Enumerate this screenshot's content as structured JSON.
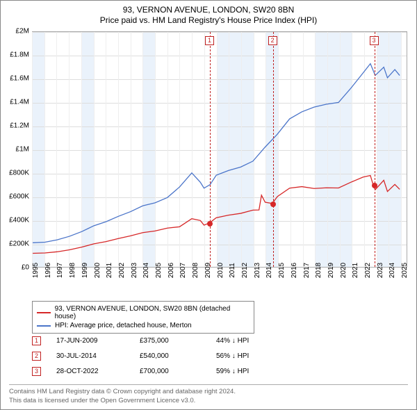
{
  "title": {
    "line1": "93, VERNON AVENUE, LONDON, SW20 8BN",
    "line2": "Price paid vs. HM Land Registry's House Price Index (HPI)"
  },
  "chart": {
    "type": "line",
    "background_color": "#ffffff",
    "grid_color": "#dddddd",
    "minor_grid_color": "#eeeeee",
    "shade_color": "#eaf2fb",
    "xlim": [
      1995,
      2025.5
    ],
    "ylim": [
      0,
      2000000
    ],
    "ytick_step": 200000,
    "ytick_labels": [
      "£0",
      "£200K",
      "£400K",
      "£600K",
      "£800K",
      "£1M",
      "£1.2M",
      "£1.4M",
      "£1.6M",
      "£1.8M",
      "£2M"
    ],
    "xticks": [
      1995,
      1996,
      1997,
      1998,
      1999,
      2000,
      2001,
      2002,
      2003,
      2004,
      2005,
      2006,
      2007,
      2008,
      2009,
      2010,
      2011,
      2012,
      2013,
      2014,
      2015,
      2016,
      2017,
      2018,
      2019,
      2020,
      2021,
      2022,
      2023,
      2024,
      2025
    ],
    "shaded_years": [
      1995,
      1999,
      2004,
      2010,
      2011,
      2012,
      2014,
      2018,
      2019,
      2020,
      2023,
      2024
    ],
    "label_fontsize": 10,
    "title_fontsize": 12,
    "line_width": 1.3,
    "series": [
      {
        "name": "hpi",
        "color": "#4a74c9",
        "label": "HPI: Average price, detached house, Merton",
        "points": [
          [
            1995,
            205000
          ],
          [
            1996,
            210000
          ],
          [
            1997,
            230000
          ],
          [
            1998,
            260000
          ],
          [
            1999,
            300000
          ],
          [
            2000,
            350000
          ],
          [
            2001,
            385000
          ],
          [
            2002,
            430000
          ],
          [
            2003,
            470000
          ],
          [
            2004,
            520000
          ],
          [
            2005,
            545000
          ],
          [
            2006,
            590000
          ],
          [
            2007,
            680000
          ],
          [
            2008,
            800000
          ],
          [
            2008.7,
            720000
          ],
          [
            2009,
            670000
          ],
          [
            2009.5,
            700000
          ],
          [
            2010,
            780000
          ],
          [
            2011,
            820000
          ],
          [
            2012,
            850000
          ],
          [
            2013,
            900000
          ],
          [
            2014,
            1020000
          ],
          [
            2015,
            1130000
          ],
          [
            2016,
            1260000
          ],
          [
            2017,
            1320000
          ],
          [
            2018,
            1360000
          ],
          [
            2019,
            1385000
          ],
          [
            2020,
            1400000
          ],
          [
            2021,
            1520000
          ],
          [
            2022,
            1650000
          ],
          [
            2022.6,
            1730000
          ],
          [
            2023,
            1630000
          ],
          [
            2023.7,
            1700000
          ],
          [
            2024,
            1610000
          ],
          [
            2024.6,
            1680000
          ],
          [
            2025,
            1630000
          ]
        ]
      },
      {
        "name": "property",
        "color": "#d62728",
        "label": "93, VERNON AVENUE, LONDON, SW20 8BN (detached house)",
        "points": [
          [
            1995,
            115000
          ],
          [
            1996,
            118000
          ],
          [
            1997,
            128000
          ],
          [
            1998,
            145000
          ],
          [
            1999,
            168000
          ],
          [
            2000,
            196000
          ],
          [
            2001,
            215000
          ],
          [
            2002,
            241000
          ],
          [
            2003,
            264000
          ],
          [
            2004,
            291000
          ],
          [
            2005,
            305000
          ],
          [
            2006,
            330000
          ],
          [
            2007,
            341000
          ],
          [
            2008,
            410000
          ],
          [
            2008.7,
            395000
          ],
          [
            2009,
            355000
          ],
          [
            2009.46,
            375000
          ],
          [
            2010,
            418000
          ],
          [
            2011,
            440000
          ],
          [
            2012,
            455000
          ],
          [
            2013,
            483000
          ],
          [
            2013.5,
            485000
          ],
          [
            2013.7,
            610000
          ],
          [
            2014,
            550000
          ],
          [
            2014.58,
            540000
          ],
          [
            2015,
            598000
          ],
          [
            2016,
            670000
          ],
          [
            2017,
            683000
          ],
          [
            2018,
            667000
          ],
          [
            2019,
            673000
          ],
          [
            2020,
            672000
          ],
          [
            2021,
            720000
          ],
          [
            2022,
            764000
          ],
          [
            2022.6,
            778000
          ],
          [
            2022.82,
            700000
          ],
          [
            2023,
            657000
          ],
          [
            2023.7,
            737000
          ],
          [
            2024,
            642000
          ],
          [
            2024.6,
            702000
          ],
          [
            2025,
            660000
          ]
        ]
      }
    ],
    "sale_markers": [
      {
        "n": "1",
        "x": 2009.46,
        "y": 375000,
        "date": "17-JUN-2009",
        "price": "£375,000",
        "pct": "44% ↓ HPI"
      },
      {
        "n": "2",
        "x": 2014.58,
        "y": 540000,
        "date": "30-JUL-2014",
        "price": "£540,000",
        "pct": "56% ↓ HPI"
      },
      {
        "n": "3",
        "x": 2022.82,
        "y": 700000,
        "date": "28-OCT-2022",
        "price": "£700,000",
        "pct": "59% ↓ HPI"
      }
    ],
    "marker_border_color": "#c02020",
    "marker_dot_color": "#d62728"
  },
  "attribution": {
    "line1": "Contains HM Land Registry data © Crown copyright and database right 2024.",
    "line2": "This data is licensed under the Open Government Licence v3.0."
  }
}
